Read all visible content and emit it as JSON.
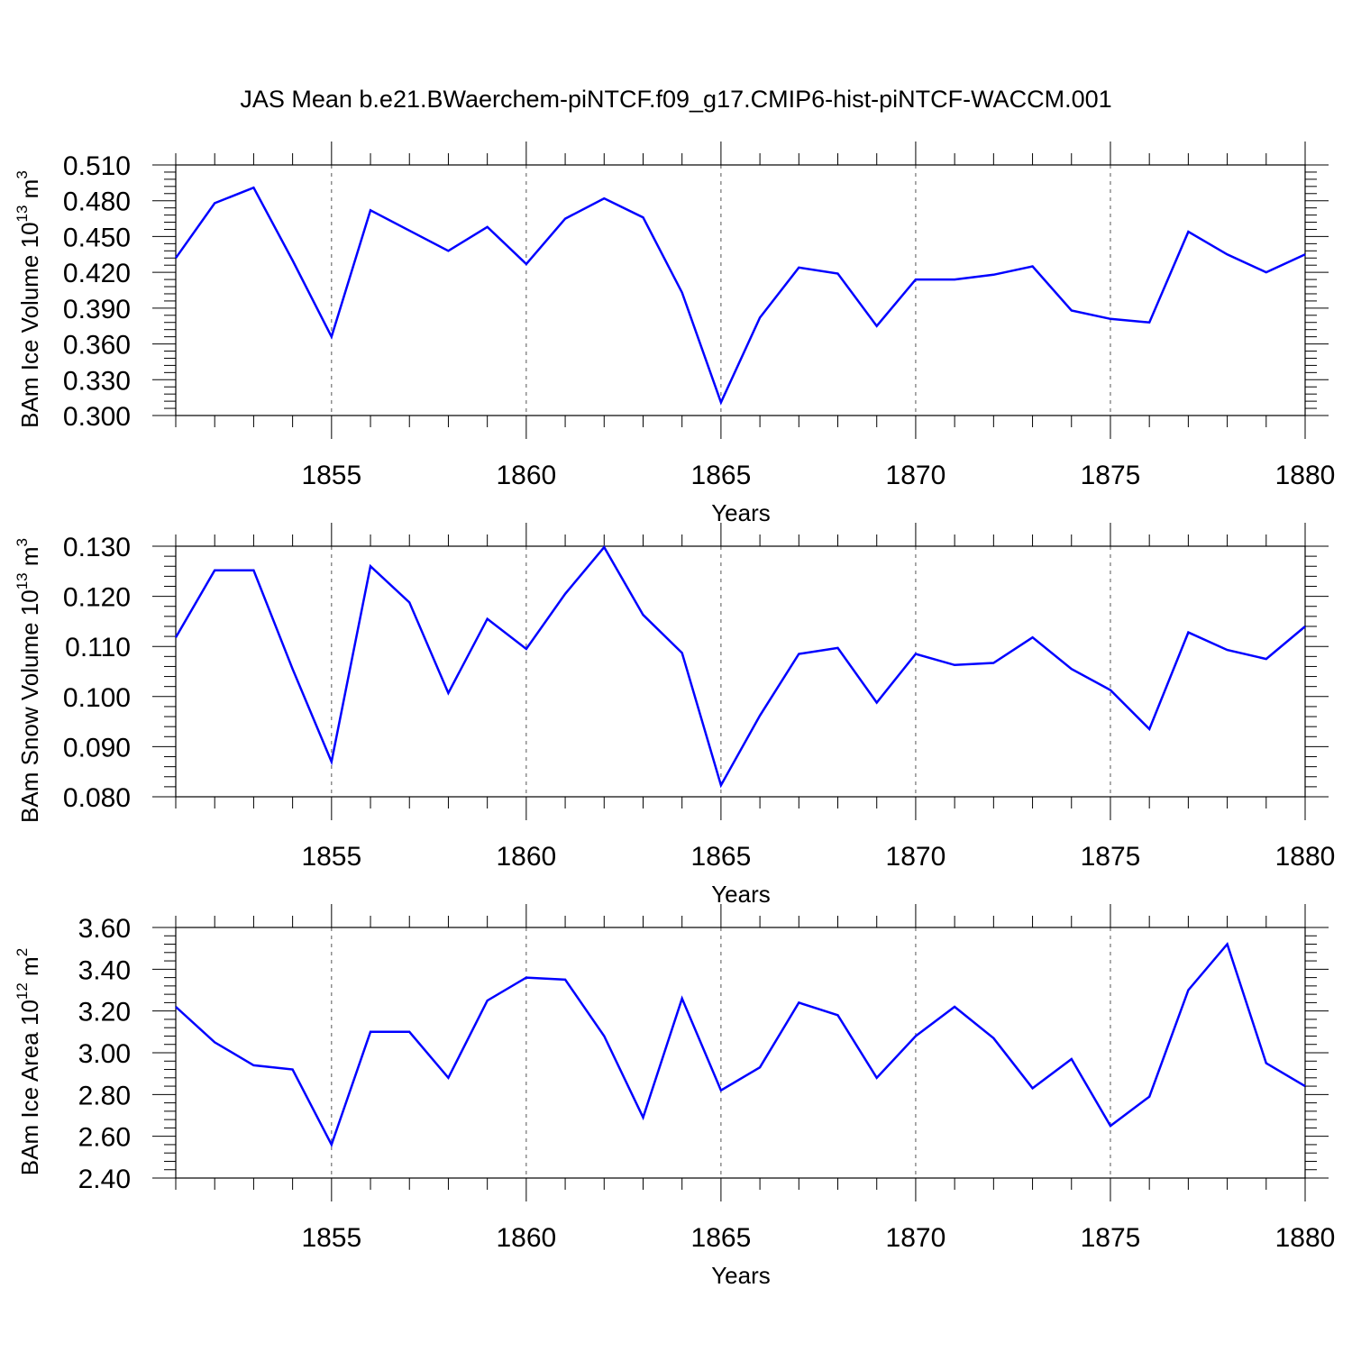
{
  "title": "JAS Mean b.e21.BWaerchem-piNTCF.f09_g17.CMIP6-hist-piNTCF-WACCM.001",
  "line_color": "#0000ff",
  "chart_data": [
    {
      "type": "line",
      "ylabel": {
        "prefix": "BAm Ice Volume 10",
        "exp": "13",
        "unit": " m",
        "unit_exp": "3"
      },
      "xlabel": "Years",
      "xlim": [
        1851,
        1880
      ],
      "ylim": [
        0.3,
        0.51
      ],
      "x_ticks": [
        1855,
        1860,
        1865,
        1870,
        1875,
        1880
      ],
      "y_ticks": [
        "0.300",
        "0.330",
        "0.360",
        "0.390",
        "0.420",
        "0.450",
        "0.480",
        "0.510"
      ],
      "grid": "dashed vertical at major x ticks",
      "x": [
        1851,
        1852,
        1853,
        1854,
        1855,
        1856,
        1857,
        1858,
        1859,
        1860,
        1861,
        1862,
        1863,
        1864,
        1865,
        1866,
        1867,
        1868,
        1869,
        1870,
        1871,
        1872,
        1873,
        1874,
        1875,
        1876,
        1877,
        1878,
        1879,
        1880
      ],
      "values": [
        0.432,
        0.478,
        0.491,
        0.43,
        0.366,
        0.472,
        0.455,
        0.438,
        0.458,
        0.427,
        0.465,
        0.482,
        0.466,
        0.403,
        0.311,
        0.382,
        0.424,
        0.419,
        0.375,
        0.414,
        0.414,
        0.418,
        0.425,
        0.388,
        0.381,
        0.378,
        0.454,
        0.435,
        0.42,
        0.435
      ]
    },
    {
      "type": "line",
      "ylabel": {
        "prefix": "BAm Snow Volume 10",
        "exp": "13",
        "unit": " m",
        "unit_exp": "3"
      },
      "xlabel": "Years",
      "xlim": [
        1851,
        1880
      ],
      "ylim": [
        0.08,
        0.13
      ],
      "x_ticks": [
        1855,
        1860,
        1865,
        1870,
        1875,
        1880
      ],
      "y_ticks": [
        "0.080",
        "0.090",
        "0.100",
        "0.110",
        "0.120",
        "0.130"
      ],
      "grid": "dashed vertical at major x ticks",
      "x": [
        1851,
        1852,
        1853,
        1854,
        1855,
        1856,
        1857,
        1858,
        1859,
        1860,
        1861,
        1862,
        1863,
        1864,
        1865,
        1866,
        1867,
        1868,
        1869,
        1870,
        1871,
        1872,
        1873,
        1874,
        1875,
        1876,
        1877,
        1878,
        1879,
        1880
      ],
      "values": [
        0.1118,
        0.1252,
        0.1252,
        0.1055,
        0.087,
        0.126,
        0.1188,
        0.1007,
        0.1155,
        0.1095,
        0.1205,
        0.1298,
        0.1163,
        0.1087,
        0.0823,
        0.0962,
        0.1085,
        0.1097,
        0.0988,
        0.1085,
        0.1063,
        0.1067,
        0.1118,
        0.1055,
        0.1013,
        0.0935,
        0.1128,
        0.1093,
        0.1075,
        0.114
      ]
    },
    {
      "type": "line",
      "ylabel": {
        "prefix": "BAm Ice Area 10",
        "exp": "12",
        "unit": " m",
        "unit_exp": "2"
      },
      "xlabel": "Years",
      "xlim": [
        1851,
        1880
      ],
      "ylim": [
        2.4,
        3.6
      ],
      "x_ticks": [
        1855,
        1860,
        1865,
        1870,
        1875,
        1880
      ],
      "y_ticks": [
        "2.40",
        "2.60",
        "2.80",
        "3.00",
        "3.20",
        "3.40",
        "3.60"
      ],
      "grid": "dashed vertical at major x ticks",
      "x": [
        1851,
        1852,
        1853,
        1854,
        1855,
        1856,
        1857,
        1858,
        1859,
        1860,
        1861,
        1862,
        1863,
        1864,
        1865,
        1866,
        1867,
        1868,
        1869,
        1870,
        1871,
        1872,
        1873,
        1874,
        1875,
        1876,
        1877,
        1878,
        1879,
        1880
      ],
      "values": [
        3.22,
        3.05,
        2.94,
        2.92,
        2.56,
        3.1,
        3.1,
        2.88,
        3.25,
        3.36,
        3.35,
        3.08,
        2.69,
        3.26,
        2.82,
        2.93,
        3.24,
        3.18,
        2.88,
        3.08,
        3.22,
        3.07,
        2.83,
        2.97,
        2.65,
        2.79,
        3.3,
        3.52,
        2.95,
        2.84
      ]
    }
  ]
}
